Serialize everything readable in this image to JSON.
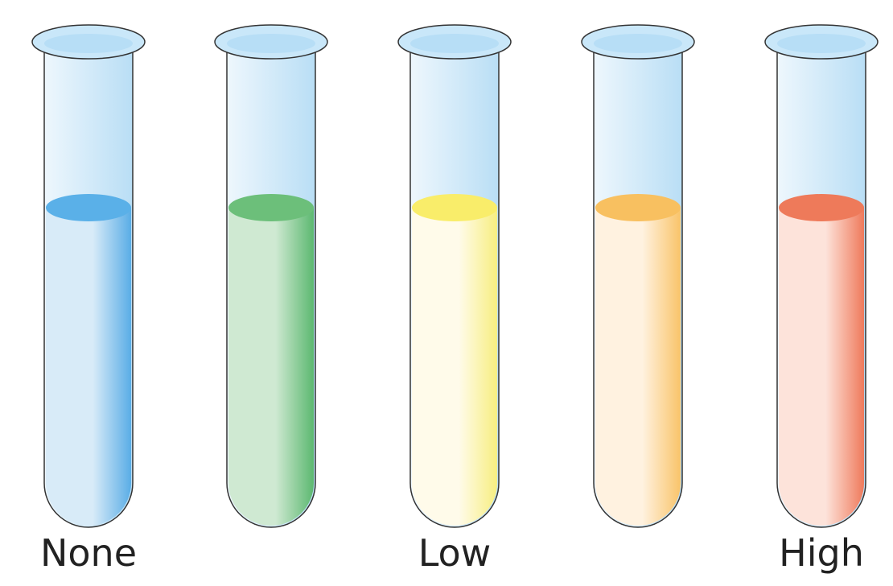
{
  "labels": [
    "None",
    "Low",
    "High"
  ]
}
